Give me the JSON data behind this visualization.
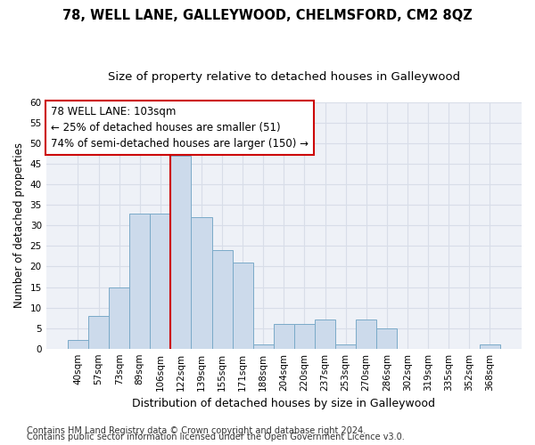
{
  "title1": "78, WELL LANE, GALLEYWOOD, CHELMSFORD, CM2 8QZ",
  "title2": "Size of property relative to detached houses in Galleywood",
  "xlabel": "Distribution of detached houses by size in Galleywood",
  "ylabel": "Number of detached properties",
  "categories": [
    "40sqm",
    "57sqm",
    "73sqm",
    "89sqm",
    "106sqm",
    "122sqm",
    "139sqm",
    "155sqm",
    "171sqm",
    "188sqm",
    "204sqm",
    "220sqm",
    "237sqm",
    "253sqm",
    "270sqm",
    "286sqm",
    "302sqm",
    "319sqm",
    "335sqm",
    "352sqm",
    "368sqm"
  ],
  "values": [
    2,
    8,
    15,
    33,
    33,
    47,
    32,
    24,
    21,
    1,
    6,
    6,
    7,
    1,
    7,
    5,
    0,
    0,
    0,
    0,
    1
  ],
  "bar_color": "#ccdaeb",
  "bar_edge_color": "#7aaac8",
  "vline_x": 4.5,
  "vline_color": "#cc0000",
  "annotation_line1": "78 WELL LANE: 103sqm",
  "annotation_line2": "← 25% of detached houses are smaller (51)",
  "annotation_line3": "74% of semi-detached houses are larger (150) →",
  "annotation_box_color": "#ffffff",
  "annotation_box_edge": "#cc0000",
  "ylim": [
    0,
    60
  ],
  "yticks": [
    0,
    5,
    10,
    15,
    20,
    25,
    30,
    35,
    40,
    45,
    50,
    55,
    60
  ],
  "grid_color": "#d8dde8",
  "background_color": "#eef1f7",
  "footer1": "Contains HM Land Registry data © Crown copyright and database right 2024.",
  "footer2": "Contains public sector information licensed under the Open Government Licence v3.0.",
  "title1_fontsize": 10.5,
  "title2_fontsize": 9.5,
  "xlabel_fontsize": 9,
  "ylabel_fontsize": 8.5,
  "tick_fontsize": 7.5,
  "footer_fontsize": 7,
  "annotation_fontsize": 8.5
}
